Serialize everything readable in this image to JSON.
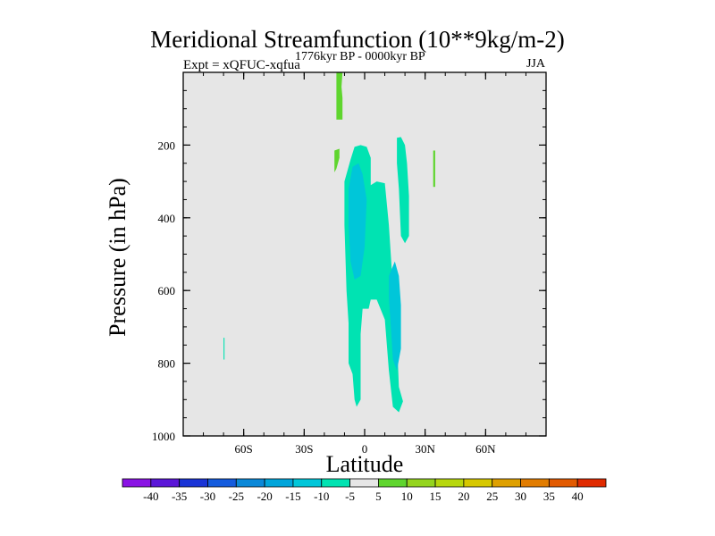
{
  "chart_data": {
    "type": "contour",
    "title": "Meridional Streamfunction (10**9kg/m-2)",
    "left_string": "Expt = xQFUC-xqfua",
    "center_string": "1776kyr BP - 0000kyr BP",
    "right_string": "JJA",
    "xlabel": "Latitude",
    "ylabel": "Pressure (in hPa)",
    "xlim": [
      -90,
      90
    ],
    "ylim": [
      0,
      1000
    ],
    "y_reversed": true,
    "x_ticks": [
      {
        "value": -60,
        "label": "60S"
      },
      {
        "value": -30,
        "label": "30S"
      },
      {
        "value": 0,
        "label": "0"
      },
      {
        "value": 30,
        "label": "30N"
      },
      {
        "value": 60,
        "label": "60N"
      }
    ],
    "y_ticks": [
      {
        "value": 200,
        "label": "200"
      },
      {
        "value": 400,
        "label": "400"
      },
      {
        "value": 600,
        "label": "600"
      },
      {
        "value": 800,
        "label": "800"
      },
      {
        "value": 1000,
        "label": "1000"
      }
    ],
    "background_color": "#e6e6e6",
    "contour_regions": [
      {
        "name": "neg-5-main-cell",
        "level_range": [
          -10,
          -5
        ],
        "color": "#00e3b2",
        "polygon": [
          [
            -5,
            205
          ],
          [
            -2,
            200
          ],
          [
            1,
            205
          ],
          [
            3,
            235
          ],
          [
            3,
            310
          ],
          [
            6,
            300
          ],
          [
            10,
            305
          ],
          [
            12,
            420
          ],
          [
            14,
            590
          ],
          [
            16,
            730
          ],
          [
            17,
            865
          ],
          [
            19,
            905
          ],
          [
            17,
            935
          ],
          [
            14,
            920
          ],
          [
            12,
            820
          ],
          [
            10,
            680
          ],
          [
            6,
            625
          ],
          [
            3,
            625
          ],
          [
            2,
            650
          ],
          [
            -1,
            650
          ],
          [
            -2,
            720
          ],
          [
            -2,
            900
          ],
          [
            -4,
            920
          ],
          [
            -5,
            900
          ],
          [
            -6,
            830
          ],
          [
            -8,
            800
          ],
          [
            -8,
            690
          ],
          [
            -9,
            600
          ],
          [
            -10,
            420
          ],
          [
            -10,
            300
          ],
          [
            -7,
            240
          ]
        ]
      },
      {
        "name": "neg-5-upper-right-cell",
        "level_range": [
          -10,
          -5
        ],
        "color": "#00e3b2",
        "polygon": [
          [
            16,
            180
          ],
          [
            18,
            178
          ],
          [
            20,
            200
          ],
          [
            21,
            250
          ],
          [
            22,
            340
          ],
          [
            22,
            450
          ],
          [
            20,
            470
          ],
          [
            18,
            450
          ],
          [
            17,
            320
          ],
          [
            16,
            250
          ]
        ]
      },
      {
        "name": "neg-10-core-upper",
        "level_range": [
          -15,
          -10
        ],
        "color": "#00c6d9",
        "polygon": [
          [
            -6,
            260
          ],
          [
            -3,
            250
          ],
          [
            -1,
            280
          ],
          [
            1,
            350
          ],
          [
            0,
            480
          ],
          [
            -2,
            560
          ],
          [
            -5,
            570
          ],
          [
            -7,
            520
          ],
          [
            -8,
            420
          ],
          [
            -8,
            320
          ]
        ]
      },
      {
        "name": "neg-10-core-lower",
        "level_range": [
          -15,
          -10
        ],
        "color": "#00c6d9",
        "polygon": [
          [
            12,
            560
          ],
          [
            15,
            520
          ],
          [
            17,
            560
          ],
          [
            18,
            640
          ],
          [
            18,
            760
          ],
          [
            16,
            820
          ],
          [
            14,
            790
          ],
          [
            13,
            700
          ],
          [
            12,
            620
          ]
        ]
      },
      {
        "name": "neg-5-spot-south",
        "level_range": [
          -10,
          -5
        ],
        "color": "#00e3b2",
        "polygon": [
          [
            -70,
            730
          ],
          [
            -69.5,
            730
          ],
          [
            -69.5,
            790
          ],
          [
            -70,
            790
          ]
        ]
      },
      {
        "name": "pos-5-upper-bar",
        "level_range": [
          5,
          10
        ],
        "color": "#5fd52e",
        "polygon": [
          [
            -14,
            0
          ],
          [
            -11,
            0
          ],
          [
            -11.5,
            40
          ],
          [
            -11,
            70
          ],
          [
            -11,
            130
          ],
          [
            -14,
            130
          ],
          [
            -14,
            70
          ]
        ]
      },
      {
        "name": "pos-5-small-spot",
        "level_range": [
          5,
          10
        ],
        "color": "#5fd52e",
        "polygon": [
          [
            -15,
            215
          ],
          [
            -12.5,
            210
          ],
          [
            -12.5,
            235
          ],
          [
            -14,
            265
          ],
          [
            -15,
            275
          ]
        ]
      },
      {
        "name": "pos-5-thin-line",
        "level_range": [
          5,
          10
        ],
        "color": "#5fd52e",
        "polygon": [
          [
            34,
            215
          ],
          [
            35,
            215
          ],
          [
            35,
            315
          ],
          [
            34,
            315
          ]
        ]
      }
    ],
    "colorbar": {
      "labels": [
        "-40",
        "-35",
        "-30",
        "-25",
        "-20",
        "-15",
        "-10",
        "-5",
        "5",
        "10",
        "15",
        "20",
        "25",
        "30",
        "35",
        "40"
      ],
      "colors": [
        "#8a13e4",
        "#5b16d8",
        "#1a34d6",
        "#145bdd",
        "#0a88d8",
        "#00a5db",
        "#00c6d9",
        "#00e3b2",
        "#e6e6e6",
        "#5fd52e",
        "#94d41e",
        "#b7d70d",
        "#d6c800",
        "#dea000",
        "#e17c00",
        "#e25a00",
        "#e02a00"
      ]
    }
  }
}
